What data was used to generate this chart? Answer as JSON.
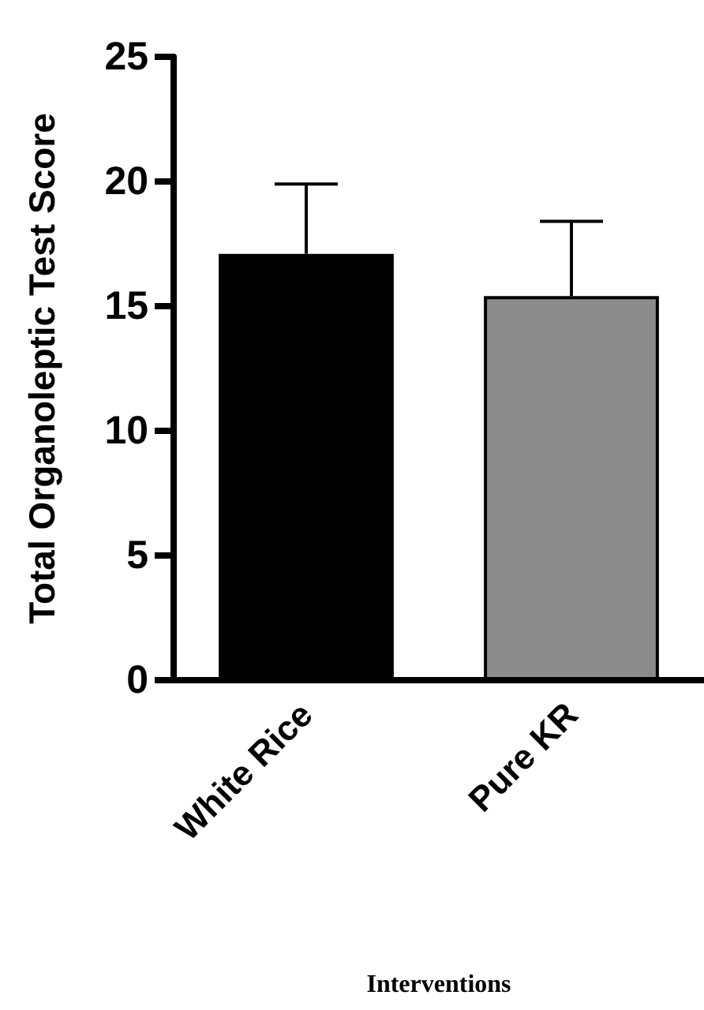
{
  "chart_data": {
    "type": "bar",
    "xlabel": "Interventions",
    "ylabel": "Total Organoleptic Test Score",
    "categories": [
      "White Rice",
      "Pure KR"
    ],
    "values": [
      17.1,
      15.4
    ],
    "colors": [
      "#000000",
      "#8c8c8c"
    ],
    "errors": [
      [
        17.1,
        19.9
      ],
      [
        15.4,
        18.4
      ]
    ],
    "ylim": [
      0,
      25
    ],
    "yticks": [
      0,
      5,
      10,
      15,
      20,
      25
    ],
    "grid": false
  }
}
